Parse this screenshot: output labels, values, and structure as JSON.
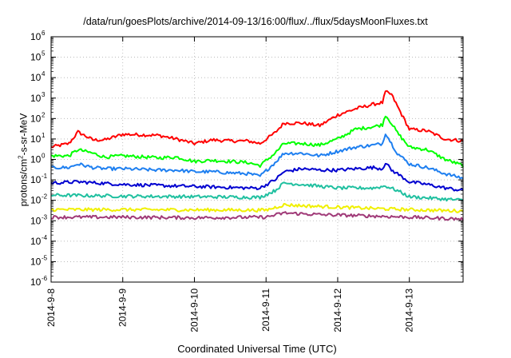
{
  "chart_data": {
    "type": "line",
    "title": "/data/run/goesPlots/archive/2014-09-13/16:00/flux/../flux/5daysMoonFluxes.txt",
    "xlabel": "Coordinated Universal Time (UTC)",
    "ylabel": {
      "prefix": "protons/cm",
      "sup": "2",
      "suffix": "-s-sr-MeV"
    },
    "y_scale": "log",
    "ylim": [
      1e-06,
      1000000.0
    ],
    "y_ticks": [
      {
        "value": 1e-06,
        "base": "10",
        "exp": "-6"
      },
      {
        "value": 1e-05,
        "base": "10",
        "exp": "-5"
      },
      {
        "value": 0.0001,
        "base": "10",
        "exp": "-4"
      },
      {
        "value": 0.001,
        "base": "10",
        "exp": "-3"
      },
      {
        "value": 0.01,
        "base": "10",
        "exp": "-2"
      },
      {
        "value": 0.1,
        "base": "10",
        "exp": "-1"
      },
      {
        "value": 1,
        "base": "10",
        "exp": "0"
      },
      {
        "value": 10.0,
        "base": "10",
        "exp": "1"
      },
      {
        "value": 100.0,
        "base": "10",
        "exp": "2"
      },
      {
        "value": 1000.0,
        "base": "10",
        "exp": "3"
      },
      {
        "value": 10000.0,
        "base": "10",
        "exp": "4"
      },
      {
        "value": 100000.0,
        "base": "10",
        "exp": "5"
      },
      {
        "value": 1000000.0,
        "base": "10",
        "exp": "6"
      }
    ],
    "xlim": [
      "2014-09-08 00:00",
      "2014-09-13 18:00"
    ],
    "x_ticks": [
      "2014-9-8",
      "2014-9-9",
      "2014-9-10",
      "2014-9-11",
      "2014-9-12",
      "2014-9-13"
    ],
    "grid": true,
    "series": [
      {
        "color": "#ff0000",
        "points": [
          [
            "2014-09-08 00:00",
            4
          ],
          [
            "2014-09-08 06:00",
            6
          ],
          [
            "2014-09-08 09:00",
            22
          ],
          [
            "2014-09-08 14:00",
            9
          ],
          [
            "2014-09-08 18:00",
            9
          ],
          [
            "2014-09-09 00:00",
            17
          ],
          [
            "2014-09-09 12:00",
            15
          ],
          [
            "2014-09-09 18:00",
            10
          ],
          [
            "2014-09-10 00:00",
            6
          ],
          [
            "2014-09-10 06:00",
            9
          ],
          [
            "2014-09-10 12:00",
            8
          ],
          [
            "2014-09-10 18:00",
            8
          ],
          [
            "2014-09-10 22:00",
            6
          ],
          [
            "2014-09-11 03:00",
            20
          ],
          [
            "2014-09-11 06:00",
            60
          ],
          [
            "2014-09-11 12:00",
            60
          ],
          [
            "2014-09-11 18:00",
            45
          ],
          [
            "2014-09-12 00:00",
            150
          ],
          [
            "2014-09-12 06:00",
            300
          ],
          [
            "2014-09-12 12:00",
            500
          ],
          [
            "2014-09-12 15:00",
            600
          ],
          [
            "2014-09-12 16:00",
            2000
          ],
          [
            "2014-09-12 18:00",
            1500
          ],
          [
            "2014-09-12 20:00",
            400
          ],
          [
            "2014-09-13 00:00",
            30
          ],
          [
            "2014-09-13 06:00",
            25
          ],
          [
            "2014-09-13 12:00",
            10
          ],
          [
            "2014-09-13 18:00",
            8
          ]
        ]
      },
      {
        "color": "#00ff00",
        "points": [
          [
            "2014-09-08 00:00",
            1.5
          ],
          [
            "2014-09-08 06:00",
            1.5
          ],
          [
            "2014-09-08 09:00",
            3
          ],
          [
            "2014-09-08 14:00",
            2
          ],
          [
            "2014-09-08 18:00",
            1.3
          ],
          [
            "2014-09-09 00:00",
            1.5
          ],
          [
            "2014-09-09 12:00",
            1.2
          ],
          [
            "2014-09-09 18:00",
            1.3
          ],
          [
            "2014-09-10 00:00",
            0.8
          ],
          [
            "2014-09-10 06:00",
            0.9
          ],
          [
            "2014-09-10 12:00",
            0.8
          ],
          [
            "2014-09-10 18:00",
            0.7
          ],
          [
            "2014-09-10 22:00",
            0.5
          ],
          [
            "2014-09-11 03:00",
            2
          ],
          [
            "2014-09-11 06:00",
            6
          ],
          [
            "2014-09-11 12:00",
            6
          ],
          [
            "2014-09-11 18:00",
            5
          ],
          [
            "2014-09-12 00:00",
            10
          ],
          [
            "2014-09-12 06:00",
            30
          ],
          [
            "2014-09-12 12:00",
            40
          ],
          [
            "2014-09-12 15:00",
            50
          ],
          [
            "2014-09-12 16:00",
            150
          ],
          [
            "2014-09-12 18:00",
            60
          ],
          [
            "2014-09-12 20:00",
            20
          ],
          [
            "2014-09-13 00:00",
            4
          ],
          [
            "2014-09-13 06:00",
            3
          ],
          [
            "2014-09-13 12:00",
            1
          ],
          [
            "2014-09-13 18:00",
            0.5
          ]
        ]
      },
      {
        "color": "#1e7ff0",
        "points": [
          [
            "2014-09-08 00:00",
            0.4
          ],
          [
            "2014-09-08 06:00",
            0.4
          ],
          [
            "2014-09-08 09:00",
            0.6
          ],
          [
            "2014-09-08 14:00",
            0.4
          ],
          [
            "2014-09-08 18:00",
            0.35
          ],
          [
            "2014-09-09 00:00",
            0.35
          ],
          [
            "2014-09-09 12:00",
            0.3
          ],
          [
            "2014-09-09 18:00",
            0.3
          ],
          [
            "2014-09-10 00:00",
            0.25
          ],
          [
            "2014-09-10 06:00",
            0.25
          ],
          [
            "2014-09-10 12:00",
            0.22
          ],
          [
            "2014-09-10 18:00",
            0.2
          ],
          [
            "2014-09-10 22:00",
            0.15
          ],
          [
            "2014-09-11 03:00",
            0.7
          ],
          [
            "2014-09-11 06:00",
            2
          ],
          [
            "2014-09-11 12:00",
            2
          ],
          [
            "2014-09-11 18:00",
            1.5
          ],
          [
            "2014-09-12 00:00",
            2.5
          ],
          [
            "2014-09-12 06:00",
            4
          ],
          [
            "2014-09-12 12:00",
            5
          ],
          [
            "2014-09-12 15:00",
            6
          ],
          [
            "2014-09-12 16:00",
            20
          ],
          [
            "2014-09-12 18:00",
            6
          ],
          [
            "2014-09-12 20:00",
            2
          ],
          [
            "2014-09-13 00:00",
            0.6
          ],
          [
            "2014-09-13 06:00",
            0.4
          ],
          [
            "2014-09-13 12:00",
            0.2
          ],
          [
            "2014-09-13 18:00",
            0.12
          ]
        ]
      },
      {
        "color": "#0000d0",
        "points": [
          [
            "2014-09-08 00:00",
            0.07
          ],
          [
            "2014-09-08 09:00",
            0.08
          ],
          [
            "2014-09-09 00:00",
            0.06
          ],
          [
            "2014-09-09 18:00",
            0.05
          ],
          [
            "2014-09-10 06:00",
            0.045
          ],
          [
            "2014-09-10 18:00",
            0.04
          ],
          [
            "2014-09-10 22:00",
            0.04
          ],
          [
            "2014-09-11 03:00",
            0.1
          ],
          [
            "2014-09-11 06:00",
            0.25
          ],
          [
            "2014-09-11 12:00",
            0.35
          ],
          [
            "2014-09-11 18:00",
            0.3
          ],
          [
            "2014-09-12 00:00",
            0.3
          ],
          [
            "2014-09-12 06:00",
            0.35
          ],
          [
            "2014-09-12 12:00",
            0.4
          ],
          [
            "2014-09-12 15:00",
            0.35
          ],
          [
            "2014-09-12 16:00",
            0.7
          ],
          [
            "2014-09-12 18:00",
            0.3
          ],
          [
            "2014-09-12 20:00",
            0.2
          ],
          [
            "2014-09-13 00:00",
            0.08
          ],
          [
            "2014-09-13 06:00",
            0.06
          ],
          [
            "2014-09-13 12:00",
            0.04
          ],
          [
            "2014-09-13 18:00",
            0.03
          ]
        ]
      },
      {
        "color": "#20c0a0",
        "points": [
          [
            "2014-09-08 00:00",
            0.018
          ],
          [
            "2014-09-09 00:00",
            0.016
          ],
          [
            "2014-09-10 00:00",
            0.015
          ],
          [
            "2014-09-10 22:00",
            0.014
          ],
          [
            "2014-09-11 03:00",
            0.03
          ],
          [
            "2014-09-11 06:00",
            0.07
          ],
          [
            "2014-09-11 12:00",
            0.06
          ],
          [
            "2014-09-12 00:00",
            0.04
          ],
          [
            "2014-09-12 12:00",
            0.04
          ],
          [
            "2014-09-12 16:00",
            0.05
          ],
          [
            "2014-09-12 20:00",
            0.03
          ],
          [
            "2014-09-13 00:00",
            0.015
          ],
          [
            "2014-09-13 18:00",
            0.01
          ]
        ]
      },
      {
        "color": "#f0f000",
        "points": [
          [
            "2014-09-08 00:00",
            0.0035
          ],
          [
            "2014-09-09 00:00",
            0.0035
          ],
          [
            "2014-09-10 00:00",
            0.0034
          ],
          [
            "2014-09-11 00:00",
            0.0033
          ],
          [
            "2014-09-11 06:00",
            0.006
          ],
          [
            "2014-09-11 18:00",
            0.005
          ],
          [
            "2014-09-12 12:00",
            0.004
          ],
          [
            "2014-09-13 00:00",
            0.0035
          ],
          [
            "2014-09-13 18:00",
            0.003
          ]
        ]
      },
      {
        "color": "#a03a78",
        "points": [
          [
            "2014-09-08 00:00",
            0.0015
          ],
          [
            "2014-09-09 00:00",
            0.0015
          ],
          [
            "2014-09-10 00:00",
            0.0014
          ],
          [
            "2014-09-11 00:00",
            0.0015
          ],
          [
            "2014-09-11 06:00",
            0.0024
          ],
          [
            "2014-09-11 18:00",
            0.002
          ],
          [
            "2014-09-12 12:00",
            0.0017
          ],
          [
            "2014-09-13 00:00",
            0.0015
          ],
          [
            "2014-09-13 18:00",
            0.0012
          ]
        ]
      }
    ]
  }
}
